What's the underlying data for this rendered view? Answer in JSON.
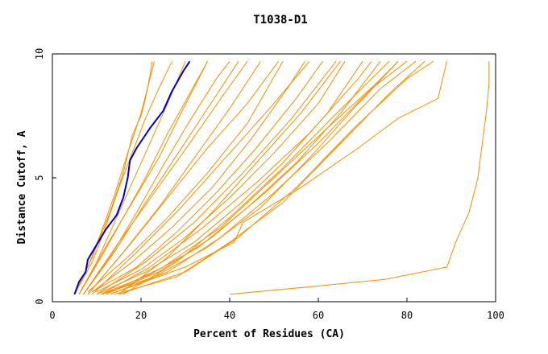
{
  "chart_data": {
    "type": "line",
    "title": "T1038-D1",
    "xlabel": "Percent of Residues (CA)",
    "ylabel": "Distance Cutoff, A",
    "xlim": [
      0,
      100
    ],
    "ylim": [
      0,
      10
    ],
    "xticks": [
      "0",
      "20",
      "40",
      "60",
      "80",
      "100"
    ],
    "yticks": [
      "0",
      "5",
      "10"
    ],
    "grid": false,
    "legend": "none",
    "colors": {
      "highlight": "#0000cc",
      "others": "#ff8c00"
    },
    "highlight_series": {
      "points": [
        [
          5,
          0.3
        ],
        [
          6,
          0.8
        ],
        [
          7.5,
          1.2
        ],
        [
          8,
          1.7
        ],
        [
          10,
          2.3
        ],
        [
          12,
          2.9
        ],
        [
          14.5,
          3.5
        ],
        [
          16,
          4.2
        ],
        [
          17,
          5.0
        ],
        [
          17.5,
          5.7
        ],
        [
          19,
          6.2
        ],
        [
          22,
          7.0
        ],
        [
          25,
          7.7
        ],
        [
          27,
          8.5
        ],
        [
          29.5,
          9.3
        ],
        [
          31,
          9.7
        ]
      ]
    },
    "other_series": [
      {
        "points": [
          [
            5,
            0.3
          ],
          [
            8,
            1.4
          ],
          [
            11,
            2.8
          ],
          [
            14,
            4.3
          ],
          [
            17,
            6.0
          ],
          [
            20,
            7.6
          ],
          [
            22,
            9.0
          ],
          [
            23,
            9.7
          ]
        ]
      },
      {
        "points": [
          [
            5,
            0.3
          ],
          [
            9,
            1.8
          ],
          [
            13,
            3.6
          ],
          [
            16,
            5.2
          ],
          [
            18,
            6.7
          ],
          [
            20,
            7.5
          ],
          [
            21,
            8.2
          ],
          [
            22,
            9.1
          ],
          [
            22.5,
            9.7
          ]
        ]
      },
      {
        "points": [
          [
            5,
            0.3
          ],
          [
            9,
            1.6
          ],
          [
            12,
            3.0
          ],
          [
            15,
            4.6
          ],
          [
            18,
            6.0
          ],
          [
            21,
            7.4
          ],
          [
            24,
            8.6
          ],
          [
            27,
            9.7
          ]
        ]
      },
      {
        "points": [
          [
            6,
            0.3
          ],
          [
            10,
            1.6
          ],
          [
            14,
            3.2
          ],
          [
            18,
            4.8
          ],
          [
            22,
            6.4
          ],
          [
            26,
            8.0
          ],
          [
            30,
            9.7
          ]
        ]
      },
      {
        "points": [
          [
            6,
            0.3
          ],
          [
            11,
            1.8
          ],
          [
            16,
            3.4
          ],
          [
            21,
            5.0
          ],
          [
            26,
            6.8
          ],
          [
            31,
            8.4
          ],
          [
            35,
            9.7
          ]
        ]
      },
      {
        "points": [
          [
            7,
            0.3
          ],
          [
            13,
            1.8
          ],
          [
            19,
            3.6
          ],
          [
            25,
            5.5
          ],
          [
            31,
            7.3
          ],
          [
            37,
            9.0
          ],
          [
            40,
            9.7
          ]
        ]
      },
      {
        "points": [
          [
            7,
            0.3
          ],
          [
            14,
            2.0
          ],
          [
            21,
            4.0
          ],
          [
            28,
            5.9
          ],
          [
            35,
            7.8
          ],
          [
            42,
            9.7
          ]
        ]
      },
      {
        "points": [
          [
            8,
            0.3
          ],
          [
            16,
            2.0
          ],
          [
            24,
            3.8
          ],
          [
            32,
            5.8
          ],
          [
            40,
            7.8
          ],
          [
            47,
            9.7
          ]
        ]
      },
      {
        "points": [
          [
            8,
            0.4
          ],
          [
            17,
            1.8
          ],
          [
            26,
            3.4
          ],
          [
            35,
            5.2
          ],
          [
            44,
            7.2
          ],
          [
            52,
            9.7
          ]
        ]
      },
      {
        "points": [
          [
            9,
            0.4
          ],
          [
            18,
            1.6
          ],
          [
            27,
            3.0
          ],
          [
            36,
            4.6
          ],
          [
            45,
            6.6
          ],
          [
            53,
            8.6
          ],
          [
            57,
            9.7
          ]
        ]
      },
      {
        "points": [
          [
            9,
            0.4
          ],
          [
            19,
            1.4
          ],
          [
            28,
            2.8
          ],
          [
            37,
            4.4
          ],
          [
            46,
            6.2
          ],
          [
            55,
            8.2
          ],
          [
            61,
            9.7
          ]
        ]
      },
      {
        "points": [
          [
            10,
            0.4
          ],
          [
            20,
            1.3
          ],
          [
            30,
            2.6
          ],
          [
            40,
            4.2
          ],
          [
            50,
            6.0
          ],
          [
            60,
            8.0
          ],
          [
            66,
            9.7
          ]
        ]
      },
      {
        "points": [
          [
            10,
            0.3
          ],
          [
            21,
            1.2
          ],
          [
            32,
            2.4
          ],
          [
            42,
            3.9
          ],
          [
            52,
            5.6
          ],
          [
            62,
            7.6
          ],
          [
            70,
            9.7
          ]
        ]
      },
      {
        "points": [
          [
            11,
            0.3
          ],
          [
            22,
            1.1
          ],
          [
            33,
            2.2
          ],
          [
            44,
            3.8
          ],
          [
            55,
            5.6
          ],
          [
            65,
            7.6
          ],
          [
            74,
            9.7
          ]
        ]
      },
      {
        "points": [
          [
            11,
            0.3
          ],
          [
            23,
            1.0
          ],
          [
            35,
            2.2
          ],
          [
            47,
            3.8
          ],
          [
            58,
            5.8
          ],
          [
            68,
            7.8
          ],
          [
            78,
            9.7
          ]
        ]
      },
      {
        "points": [
          [
            12,
            0.3
          ],
          [
            24,
            1.2
          ],
          [
            36,
            2.6
          ],
          [
            48,
            4.4
          ],
          [
            60,
            6.4
          ],
          [
            72,
            8.6
          ],
          [
            80,
            9.7
          ]
        ]
      },
      {
        "points": [
          [
            12,
            0.3
          ],
          [
            25,
            1.4
          ],
          [
            38,
            3.0
          ],
          [
            50,
            5.0
          ],
          [
            62,
            7.0
          ],
          [
            73,
            8.8
          ],
          [
            78,
            9.7
          ]
        ]
      },
      {
        "points": [
          [
            6,
            0.3
          ],
          [
            12,
            2.2
          ],
          [
            18,
            4.0
          ],
          [
            24,
            5.8
          ],
          [
            29,
            7.6
          ],
          [
            33,
            9.0
          ],
          [
            35,
            9.7
          ]
        ]
      },
      {
        "points": [
          [
            7,
            0.3
          ],
          [
            15,
            2.4
          ],
          [
            23,
            4.4
          ],
          [
            31,
            6.4
          ],
          [
            38,
            8.2
          ],
          [
            44,
            9.7
          ]
        ]
      },
      {
        "points": [
          [
            8,
            0.3
          ],
          [
            17,
            2.2
          ],
          [
            26,
            4.2
          ],
          [
            35,
            6.2
          ],
          [
            44,
            8.0
          ],
          [
            51,
            9.7
          ]
        ]
      },
      {
        "points": [
          [
            9,
            0.3
          ],
          [
            19,
            2.0
          ],
          [
            29,
            3.8
          ],
          [
            39,
            5.8
          ],
          [
            49,
            7.8
          ],
          [
            58,
            9.7
          ]
        ]
      },
      {
        "points": [
          [
            10,
            0.3
          ],
          [
            21,
            1.6
          ],
          [
            32,
            3.2
          ],
          [
            43,
            5.2
          ],
          [
            54,
            7.4
          ],
          [
            64,
            9.7
          ]
        ]
      },
      {
        "points": [
          [
            11,
            0.3
          ],
          [
            22,
            1.4
          ],
          [
            34,
            3.0
          ],
          [
            46,
            4.8
          ],
          [
            58,
            6.8
          ],
          [
            69,
            9.0
          ],
          [
            72,
            9.7
          ]
        ]
      },
      {
        "points": [
          [
            13,
            0.3
          ],
          [
            26,
            1.2
          ],
          [
            38,
            2.6
          ],
          [
            50,
            4.4
          ],
          [
            62,
            6.4
          ],
          [
            74,
            8.6
          ],
          [
            82,
            9.7
          ]
        ]
      },
      {
        "points": [
          [
            14,
            0.3
          ],
          [
            28,
            1.0
          ],
          [
            40,
            2.4
          ],
          [
            52,
            4.0
          ],
          [
            64,
            6.2
          ],
          [
            76,
            8.4
          ],
          [
            84,
            9.7
          ]
        ]
      },
      {
        "points": [
          [
            15,
            0.3
          ],
          [
            30,
            1.2
          ],
          [
            42,
            2.6
          ],
          [
            55,
            4.6
          ],
          [
            68,
            7.0
          ],
          [
            80,
            9.0
          ],
          [
            86,
            9.7
          ]
        ]
      },
      {
        "points": [
          [
            13,
            0.3
          ],
          [
            30,
            1.4
          ],
          [
            41,
            2.4
          ],
          [
            43,
            3.2
          ],
          [
            56,
            4.6
          ],
          [
            69,
            6.2
          ],
          [
            78,
            7.4
          ],
          [
            87,
            8.2
          ],
          [
            89,
            9.7
          ]
        ]
      },
      {
        "points": [
          [
            16,
            0.3
          ],
          [
            28,
            1.6
          ],
          [
            40,
            3.4
          ],
          [
            52,
            5.4
          ],
          [
            63,
            7.4
          ],
          [
            72,
            9.0
          ],
          [
            76,
            9.7
          ]
        ]
      },
      {
        "points": [
          [
            15,
            0.3
          ],
          [
            26,
            1.8
          ],
          [
            36,
            3.6
          ],
          [
            46,
            5.6
          ],
          [
            56,
            7.6
          ],
          [
            65,
            9.7
          ]
        ]
      },
      {
        "points": [
          [
            40,
            0.3
          ],
          [
            58,
            0.6
          ],
          [
            75,
            0.9
          ],
          [
            89,
            1.4
          ],
          [
            91,
            2.4
          ],
          [
            94,
            3.6
          ],
          [
            96,
            5.0
          ],
          [
            97,
            6.4
          ],
          [
            98,
            7.8
          ],
          [
            98.5,
            8.8
          ],
          [
            98.5,
            9.7
          ]
        ]
      }
    ]
  }
}
